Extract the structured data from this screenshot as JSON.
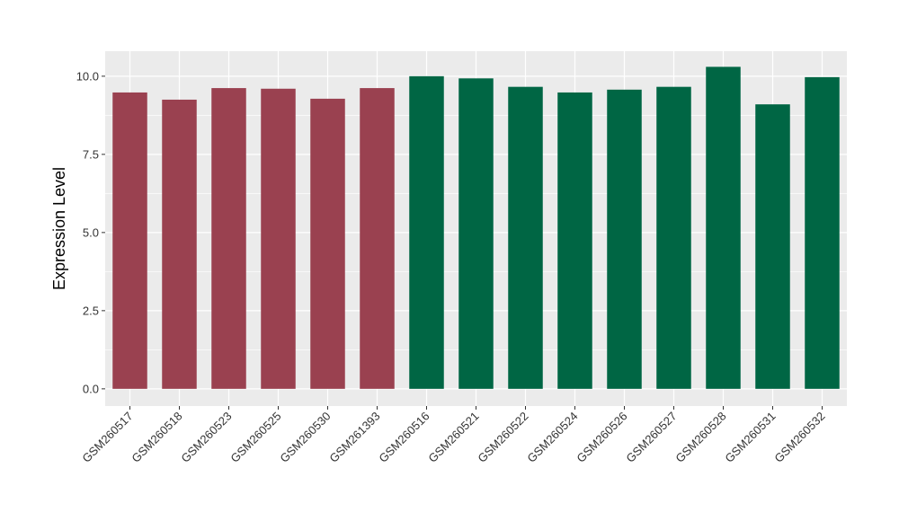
{
  "chart_data": {
    "type": "bar",
    "title": "",
    "xlabel": "",
    "ylabel": "Expression Level",
    "ylim": [
      -0.55,
      10.8
    ],
    "yticks": [
      0,
      2.5,
      5,
      7.5,
      10
    ],
    "ytick_labels": [
      "0.0",
      "2.5",
      "5.0",
      "7.5",
      "10.0"
    ],
    "grid": true,
    "legend": "none",
    "categories": [
      "GSM260517",
      "GSM260518",
      "GSM260523",
      "GSM260525",
      "GSM260530",
      "GSM261393",
      "GSM260516",
      "GSM260521",
      "GSM260522",
      "GSM260524",
      "GSM260526",
      "GSM260527",
      "GSM260528",
      "GSM260531",
      "GSM260532"
    ],
    "values": [
      9.48,
      9.25,
      9.62,
      9.6,
      9.28,
      9.62,
      10.0,
      9.93,
      9.66,
      9.48,
      9.57,
      9.66,
      10.3,
      9.1,
      9.97
    ],
    "bar_colors": [
      "#9a4150",
      "#9a4150",
      "#9a4150",
      "#9a4150",
      "#9a4150",
      "#9a4150",
      "#006644",
      "#006644",
      "#006644",
      "#006644",
      "#006644",
      "#006644",
      "#006644",
      "#006644",
      "#006644"
    ],
    "panel_color": "#ebebeb",
    "grid_color": "#ffffff"
  }
}
